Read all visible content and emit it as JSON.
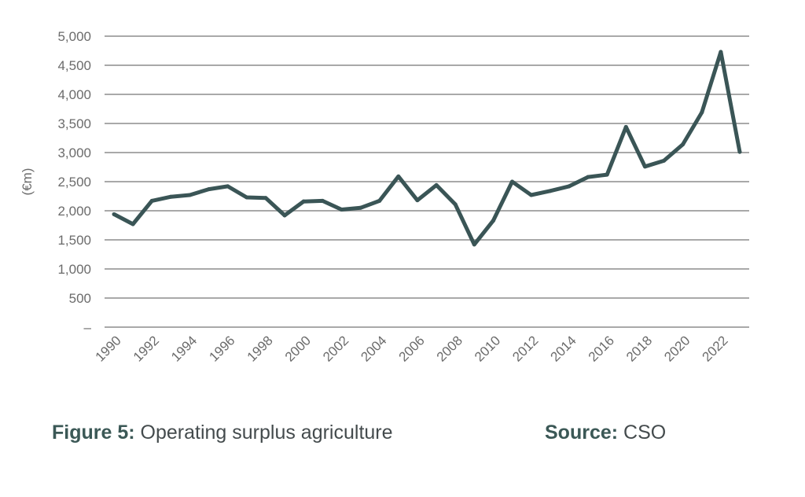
{
  "caption": {
    "figure_label": "Figure 5:",
    "figure_text": " Operating surplus agriculture",
    "source_label": "Source:",
    "source_text": " CSO"
  },
  "chart_data": {
    "type": "line",
    "title": "Operating surplus agriculture",
    "xlabel": "",
    "ylabel": "(€m)",
    "x": [
      1990,
      1991,
      1992,
      1993,
      1994,
      1995,
      1996,
      1997,
      1998,
      1999,
      2000,
      2001,
      2002,
      2003,
      2004,
      2005,
      2006,
      2007,
      2008,
      2009,
      2010,
      2011,
      2012,
      2013,
      2014,
      2015,
      2016,
      2017,
      2018,
      2019,
      2020,
      2021,
      2022,
      2023
    ],
    "x_tick_labels": [
      "1990",
      "1992",
      "1994",
      "1996",
      "1998",
      "2000",
      "2002",
      "2004",
      "2006",
      "2008",
      "2010",
      "2012",
      "2014",
      "2016",
      "2018",
      "2020",
      "2022"
    ],
    "y_tick_labels": [
      "–",
      "500",
      "1,000",
      "1,500",
      "2,000",
      "2,500",
      "3,000",
      "3,500",
      "4,000",
      "4,500",
      "5,000"
    ],
    "y_ticks": [
      0,
      500,
      1000,
      1500,
      2000,
      2500,
      3000,
      3500,
      4000,
      4500,
      5000
    ],
    "ylim": [
      0,
      5000
    ],
    "grid": true,
    "series": [
      {
        "color": "#3a5556",
        "values": [
          1940,
          1770,
          2170,
          2240,
          2270,
          2370,
          2420,
          2230,
          2220,
          1920,
          2160,
          2170,
          2020,
          2050,
          2170,
          2590,
          2180,
          2440,
          2110,
          1420,
          1830,
          2500,
          2270,
          2340,
          2420,
          2580,
          2620,
          3440,
          2760,
          2860,
          3140,
          3690,
          4730,
          3010
        ]
      }
    ]
  }
}
